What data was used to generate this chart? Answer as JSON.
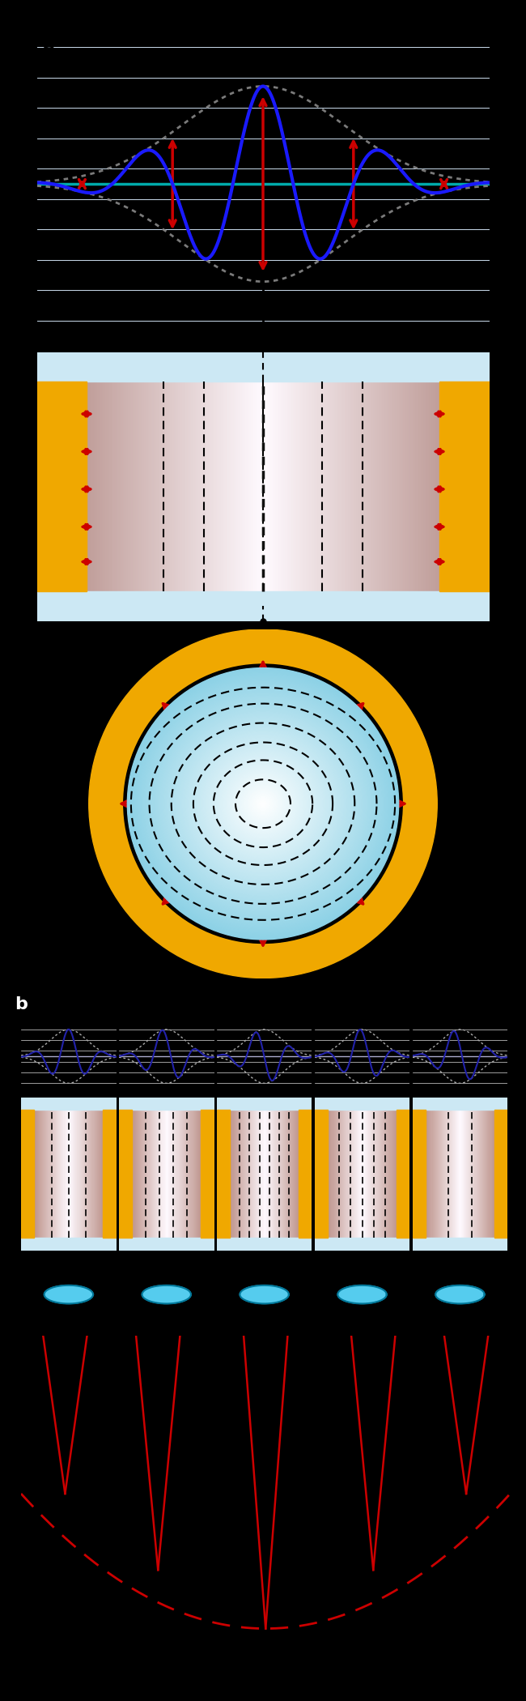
{
  "bg_color": "#000000",
  "panel_a_label": "a",
  "panel_b_label": "b",
  "wave_color": "#1a1aff",
  "arrow_color": "#cc0000",
  "cyan_line_color": "#00aaaa",
  "gold_color": "#f0a800",
  "light_blue": "#aadcee",
  "mid_blue": "#5bbcd0",
  "white_color": "#ffffff",
  "black_color": "#000000",
  "wave_bg": "#eef4f8",
  "n_panels_b": 5
}
